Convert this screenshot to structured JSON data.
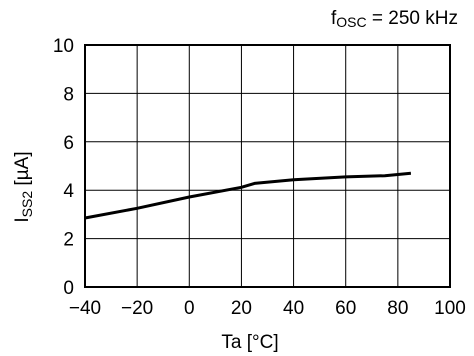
{
  "chart_data": {
    "type": "line",
    "annotation": {
      "symbol": "f",
      "subscript": "OSC",
      "rest": " = 250 kHz"
    },
    "xlabel": "Ta [°C]",
    "ylabel": {
      "symbol": "I",
      "subscript": "SS2",
      "unit": " [µA]"
    },
    "xlim": [
      -40,
      100
    ],
    "ylim": [
      0,
      10
    ],
    "xticks": [
      -40,
      -20,
      0,
      20,
      40,
      60,
      80,
      100
    ],
    "yticks": [
      0,
      2,
      4,
      6,
      8,
      10
    ],
    "xtick_labels": [
      "−40",
      "−20",
      "0",
      "20",
      "40",
      "60",
      "80",
      "100"
    ],
    "ytick_labels": [
      "0",
      "2",
      "4",
      "6",
      "8",
      "10"
    ],
    "grid": true,
    "series": [
      {
        "color": "#000000",
        "x": [
          -40,
          -20,
          0,
          20,
          25,
          40,
          60,
          75,
          85
        ],
        "y": [
          2.85,
          3.25,
          3.72,
          4.12,
          4.28,
          4.43,
          4.55,
          4.6,
          4.7
        ]
      }
    ]
  }
}
